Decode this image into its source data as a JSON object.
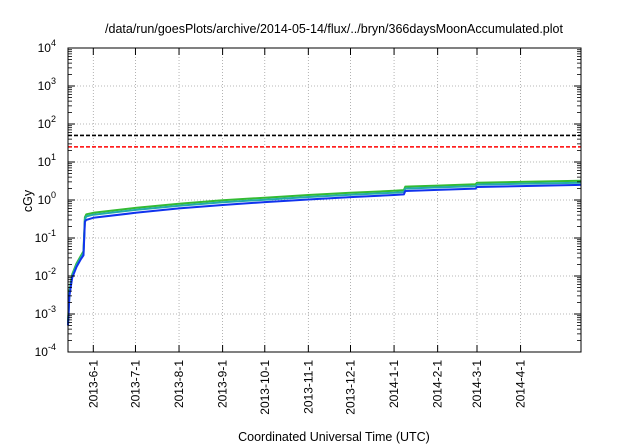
{
  "chart_data": {
    "type": "line",
    "title": "/data/run/goesPlots/archive/2014-05-14/flux/../bryn/366daysMoonAccumulated.plot",
    "xlabel": "Coordinated Universal Time (UTC)",
    "ylabel": "cGy",
    "yscale": "log",
    "ylim": [
      0.0001,
      10000
    ],
    "xlim": [
      "2013-05-14",
      "2014-05-14"
    ],
    "grid": true,
    "y_ticks": [
      {
        "value": 0.0001,
        "base": "10",
        "exp": "-4"
      },
      {
        "value": 0.001,
        "base": "10",
        "exp": "-3"
      },
      {
        "value": 0.01,
        "base": "10",
        "exp": "-2"
      },
      {
        "value": 0.1,
        "base": "10",
        "exp": "-1"
      },
      {
        "value": 1,
        "base": "10",
        "exp": "0"
      },
      {
        "value": 10,
        "base": "10",
        "exp": "1"
      },
      {
        "value": 100,
        "base": "10",
        "exp": "2"
      },
      {
        "value": 1000,
        "base": "10",
        "exp": "3"
      },
      {
        "value": 10000,
        "base": "10",
        "exp": "4"
      }
    ],
    "x_ticks": [
      "2013-6-1",
      "2013-7-1",
      "2013-8-1",
      "2013-9-1",
      "2013-10-1",
      "2013-11-1",
      "2013-12-1",
      "2014-1-1",
      "2014-2-1",
      "2014-3-1",
      "2014-4-1"
    ],
    "threshold_lines": [
      {
        "value": 50,
        "color": "#000000",
        "style": "dashed"
      },
      {
        "value": 25,
        "color": "#ff0000",
        "style": "dashed"
      }
    ],
    "series": [
      {
        "color": "#33bb33",
        "points": [
          [
            "2013-05-14",
            0.0006
          ],
          [
            "2013-05-15",
            0.004
          ],
          [
            "2013-05-17",
            0.011
          ],
          [
            "2013-05-20",
            0.021
          ],
          [
            "2013-05-23",
            0.033
          ],
          [
            "2013-05-25",
            0.045
          ],
          [
            "2013-05-26",
            0.35
          ],
          [
            "2013-05-27",
            0.42
          ],
          [
            "2013-06-01",
            0.46
          ],
          [
            "2013-07-01",
            0.62
          ],
          [
            "2013-08-01",
            0.8
          ],
          [
            "2013-09-01",
            0.98
          ],
          [
            "2013-10-01",
            1.15
          ],
          [
            "2013-11-01",
            1.35
          ],
          [
            "2013-12-01",
            1.55
          ],
          [
            "2014-01-01",
            1.75
          ],
          [
            "2014-01-08",
            1.82
          ],
          [
            "2014-01-09",
            2.25
          ],
          [
            "2014-02-01",
            2.4
          ],
          [
            "2014-02-28",
            2.6
          ],
          [
            "2014-03-01",
            2.85
          ],
          [
            "2014-04-01",
            3.0
          ],
          [
            "2014-05-14",
            3.2
          ]
        ]
      },
      {
        "color": "#22aaaa",
        "points": [
          [
            "2013-05-14",
            0.0005
          ],
          [
            "2013-05-15",
            0.0035
          ],
          [
            "2013-05-17",
            0.01
          ],
          [
            "2013-05-20",
            0.019
          ],
          [
            "2013-05-23",
            0.03
          ],
          [
            "2013-05-25",
            0.04
          ],
          [
            "2013-05-26",
            0.31
          ],
          [
            "2013-05-27",
            0.37
          ],
          [
            "2013-06-01",
            0.41
          ],
          [
            "2013-07-01",
            0.55
          ],
          [
            "2013-08-01",
            0.71
          ],
          [
            "2013-09-01",
            0.87
          ],
          [
            "2013-10-01",
            1.02
          ],
          [
            "2013-11-01",
            1.2
          ],
          [
            "2013-12-01",
            1.38
          ],
          [
            "2014-01-01",
            1.56
          ],
          [
            "2014-01-08",
            1.62
          ],
          [
            "2014-01-09",
            2.0
          ],
          [
            "2014-02-01",
            2.14
          ],
          [
            "2014-02-28",
            2.32
          ],
          [
            "2014-03-01",
            2.55
          ],
          [
            "2014-04-01",
            2.68
          ],
          [
            "2014-05-14",
            2.86
          ]
        ]
      },
      {
        "color": "#1133ee",
        "points": [
          [
            "2013-05-14",
            0.0005
          ],
          [
            "2013-05-15",
            0.003
          ],
          [
            "2013-05-17",
            0.009
          ],
          [
            "2013-05-20",
            0.017
          ],
          [
            "2013-05-23",
            0.027
          ],
          [
            "2013-05-25",
            0.035
          ],
          [
            "2013-05-26",
            0.27
          ],
          [
            "2013-05-27",
            0.3
          ],
          [
            "2013-06-01",
            0.34
          ],
          [
            "2013-07-01",
            0.46
          ],
          [
            "2013-08-01",
            0.6
          ],
          [
            "2013-09-01",
            0.74
          ],
          [
            "2013-10-01",
            0.88
          ],
          [
            "2013-11-01",
            1.03
          ],
          [
            "2013-12-01",
            1.19
          ],
          [
            "2014-01-01",
            1.35
          ],
          [
            "2014-01-08",
            1.4
          ],
          [
            "2014-01-09",
            1.72
          ],
          [
            "2014-02-01",
            1.84
          ],
          [
            "2014-02-28",
            2.0
          ],
          [
            "2014-03-01",
            2.2
          ],
          [
            "2014-04-01",
            2.32
          ],
          [
            "2014-05-14",
            2.5
          ]
        ]
      }
    ]
  }
}
